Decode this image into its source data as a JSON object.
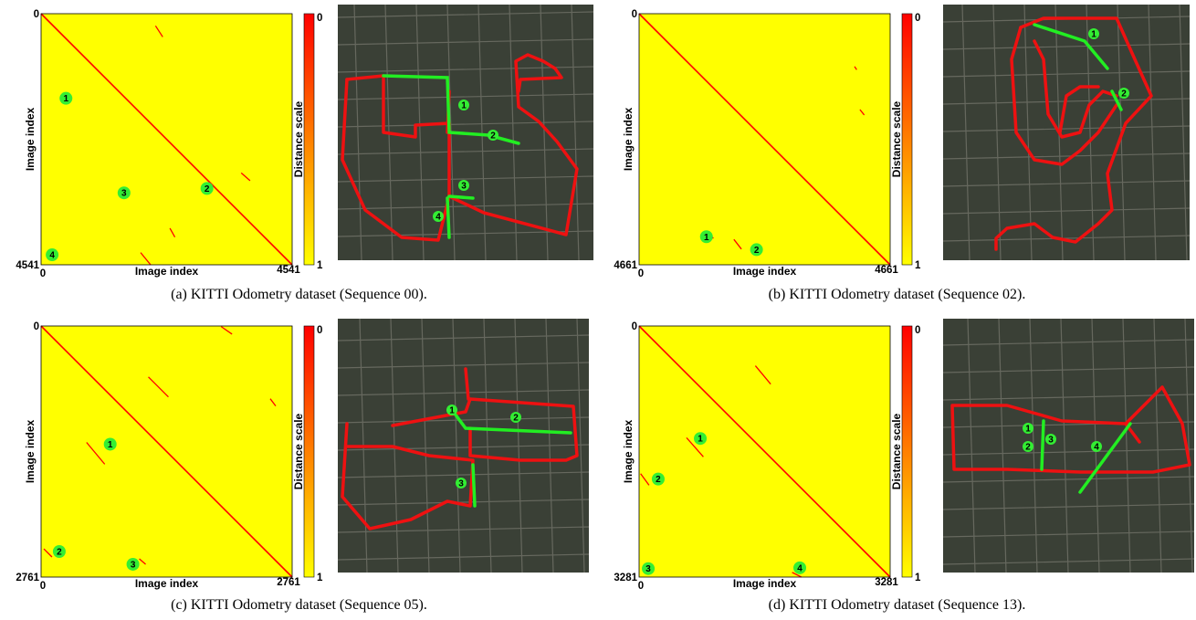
{
  "colors": {
    "matrix_bg": "#ffff00",
    "loop_red": "#ff0000",
    "marker_green": "#33ee33",
    "trajectory_red": "#ee1111",
    "loop_green": "#22ee22",
    "aerial_dark": "#3a4036",
    "aerial_light": "#8a8a80"
  },
  "panels": [
    {
      "caption": "(a)  KITTI Odometry dataset (Sequence 00).",
      "chart_data": {
        "type": "heatmap",
        "xlabel": "Image index",
        "ylabel": "Image index",
        "colorbar_label": "Distance scale",
        "colorbar_ticks": [
          "0",
          "1"
        ],
        "n": 4541,
        "axis_ticks": {
          "origin": "0",
          "x_end": "4541",
          "y_end": "4541"
        },
        "loop_segments": [
          {
            "x": [
              1800,
              1980
            ],
            "y": [
              4320,
              4540
            ]
          },
          {
            "x": [
              2070,
              2200
            ],
            "y": [
              220,
              420
            ]
          },
          {
            "x": [
              2330,
              2420
            ],
            "y": [
              3880,
              4040
            ]
          },
          {
            "x": [
              3620,
              3780
            ],
            "y": [
              2880,
              3020
            ]
          }
        ],
        "markers": [
          {
            "label": "1",
            "x": 450,
            "y": 1530
          },
          {
            "label": "2",
            "x": 3000,
            "y": 3160
          },
          {
            "label": "3",
            "x": 1500,
            "y": 3240
          },
          {
            "label": "4",
            "x": 200,
            "y": 4360
          }
        ]
      },
      "map_markers": [
        "1",
        "2",
        "3",
        "4"
      ]
    },
    {
      "caption": "(b)  KITTI Odometry dataset (Sequence 02).",
      "chart_data": {
        "type": "heatmap",
        "xlabel": "Image index",
        "ylabel": "Image index",
        "colorbar_label": "Distance scale",
        "colorbar_ticks": [
          "0",
          "1"
        ],
        "n": 4661,
        "axis_ticks": {
          "origin": "0",
          "x_end": "4661",
          "y_end": "4661"
        },
        "loop_segments": [
          {
            "x": [
              1250,
              1380
            ],
            "y": [
              4050,
              4170
            ]
          },
          {
            "x": [
              1760,
              1900
            ],
            "y": [
              4190,
              4370
            ]
          },
          {
            "x": [
              4100,
              4180
            ],
            "y": [
              1780,
              1880
            ]
          },
          {
            "x": [
              4000,
              4040
            ],
            "y": [
              980,
              1040
            ]
          }
        ],
        "markers": [
          {
            "label": "1",
            "x": 1250,
            "y": 4140
          },
          {
            "label": "2",
            "x": 2180,
            "y": 4380
          }
        ]
      },
      "map_markers": [
        "1",
        "2"
      ]
    },
    {
      "caption": "(c)  KITTI Odometry dataset (Sequence 05).",
      "chart_data": {
        "type": "heatmap",
        "xlabel": "Image index",
        "ylabel": "Image index",
        "colorbar_label": "Distance scale",
        "colorbar_ticks": [
          "0",
          "1"
        ],
        "n": 2761,
        "axis_ticks": {
          "origin": "0",
          "x_end": "2761",
          "y_end": "2761"
        },
        "loop_segments": [
          {
            "x": [
              500,
              700
            ],
            "y": [
              1280,
              1520
            ]
          },
          {
            "x": [
              1180,
              1400
            ],
            "y": [
              560,
              780
            ]
          },
          {
            "x": [
              2520,
              2580
            ],
            "y": [
              800,
              880
            ]
          },
          {
            "x": [
              1980,
              2100
            ],
            "y": [
              6,
              90
            ]
          },
          {
            "x": [
              30,
              120
            ],
            "y": [
              2450,
              2540
            ]
          },
          {
            "x": [
              1080,
              1150
            ],
            "y": [
              2560,
              2620
            ]
          }
        ],
        "markers": [
          {
            "label": "1",
            "x": 760,
            "y": 1300
          },
          {
            "label": "2",
            "x": 200,
            "y": 2480
          },
          {
            "label": "3",
            "x": 1010,
            "y": 2620
          }
        ]
      },
      "map_markers": [
        "1",
        "2",
        "3"
      ]
    },
    {
      "caption": "(d)  KITTI Odometry dataset (Sequence 13).",
      "chart_data": {
        "type": "heatmap",
        "xlabel": "Image index",
        "ylabel": "Image index",
        "colorbar_label": "Distance scale",
        "colorbar_ticks": [
          "0",
          "1"
        ],
        "n": 3281,
        "axis_ticks": {
          "origin": "0",
          "x_end": "3281",
          "y_end": "3281"
        },
        "loop_segments": [
          {
            "x": [
              620,
              840
            ],
            "y": [
              1460,
              1710
            ]
          },
          {
            "x": [
              1520,
              1720
            ],
            "y": [
              520,
              760
            ]
          },
          {
            "x": [
              20,
              130
            ],
            "y": [
              1930,
              2080
            ]
          },
          {
            "x": [
              2000,
              2120
            ],
            "y": [
              3220,
              3280
            ]
          }
        ],
        "markers": [
          {
            "label": "1",
            "x": 800,
            "y": 1470
          },
          {
            "label": "2",
            "x": 250,
            "y": 2000
          },
          {
            "label": "3",
            "x": 120,
            "y": 3170
          },
          {
            "label": "4",
            "x": 2100,
            "y": 3160
          }
        ]
      },
      "map_markers": [
        "1",
        "2",
        "3",
        "4"
      ]
    }
  ]
}
